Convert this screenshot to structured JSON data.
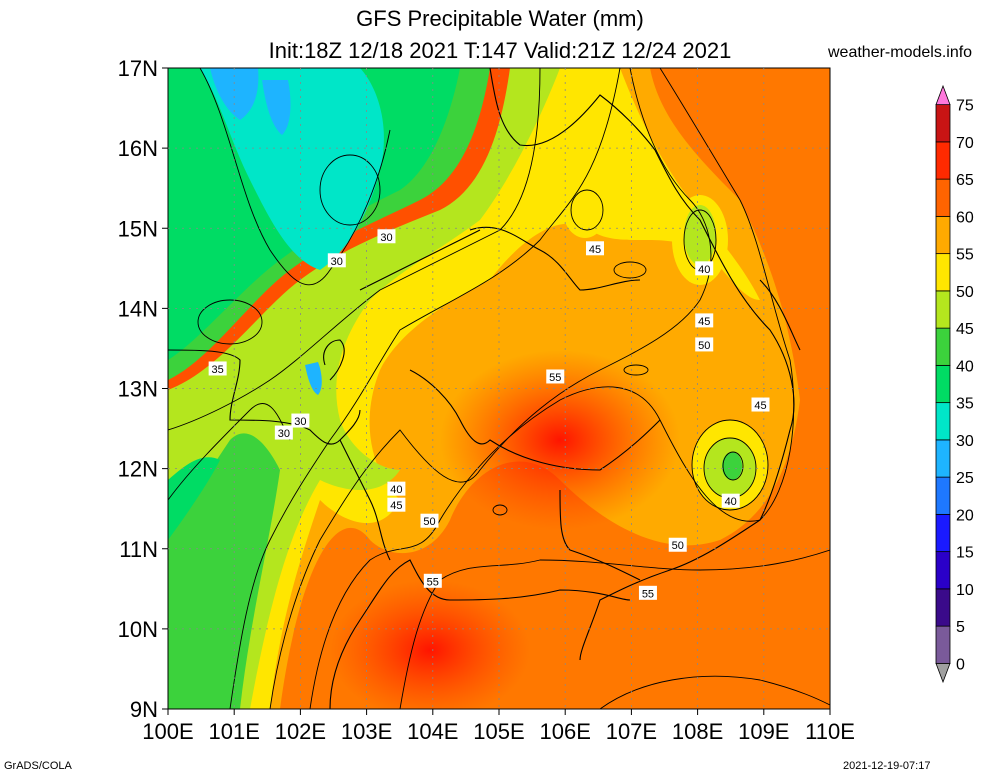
{
  "title": "GFS Precipitable Water (mm)",
  "subtitle": "Init:18Z 12/18 2021 T:147 Valid:21Z 12/24 2021",
  "site": "weather-models.info",
  "footer_left": "GrADS/COLA",
  "footer_right": "2021-12-19-07:17",
  "map": {
    "lon_range": [
      100,
      110
    ],
    "lat_range": [
      9,
      17
    ],
    "lat_labels": [
      "9N",
      "10N",
      "11N",
      "12N",
      "13N",
      "14N",
      "15N",
      "16N",
      "17N"
    ],
    "lon_labels": [
      "100E",
      "101E",
      "102E",
      "103E",
      "104E",
      "105E",
      "106E",
      "107E",
      "108E",
      "109E",
      "110E"
    ]
  },
  "colorbar": {
    "labels": [
      "0",
      "5",
      "10",
      "15",
      "20",
      "25",
      "30",
      "35",
      "40",
      "45",
      "50",
      "55",
      "60",
      "65",
      "70",
      "75"
    ],
    "colors": [
      "#a0a0a0",
      "#7a5a9a",
      "#3a0a8a",
      "#2a00c8",
      "#1a1aff",
      "#1e78ff",
      "#1eb4ff",
      "#00e6c8",
      "#00dc64",
      "#3cd23c",
      "#b4e61e",
      "#ffe600",
      "#ffaa00",
      "#ff6400",
      "#ff2a00",
      "#c81414",
      "#e60aa0",
      "#ff78dc"
    ]
  },
  "contour_labels": [
    {
      "text": "30",
      "lon": 103.3,
      "lat": 14.9
    },
    {
      "text": "30",
      "lon": 102.55,
      "lat": 14.6
    },
    {
      "text": "35",
      "lon": 100.75,
      "lat": 13.25
    },
    {
      "text": "30",
      "lon": 102.0,
      "lat": 12.6
    },
    {
      "text": "30",
      "lon": 101.75,
      "lat": 12.45
    },
    {
      "text": "45",
      "lon": 106.45,
      "lat": 14.75
    },
    {
      "text": "40",
      "lon": 108.1,
      "lat": 14.5
    },
    {
      "text": "45",
      "lon": 108.1,
      "lat": 13.85
    },
    {
      "text": "50",
      "lon": 108.1,
      "lat": 13.55
    },
    {
      "text": "55",
      "lon": 105.85,
      "lat": 13.15
    },
    {
      "text": "45",
      "lon": 108.95,
      "lat": 12.8
    },
    {
      "text": "40",
      "lon": 103.45,
      "lat": 11.75
    },
    {
      "text": "45",
      "lon": 103.45,
      "lat": 11.55
    },
    {
      "text": "50",
      "lon": 103.95,
      "lat": 11.35
    },
    {
      "text": "40",
      "lon": 108.5,
      "lat": 11.6
    },
    {
      "text": "50",
      "lon": 107.7,
      "lat": 11.05
    },
    {
      "text": "55",
      "lon": 104.0,
      "lat": 10.6
    },
    {
      "text": "55",
      "lon": 107.25,
      "lat": 10.45
    }
  ]
}
